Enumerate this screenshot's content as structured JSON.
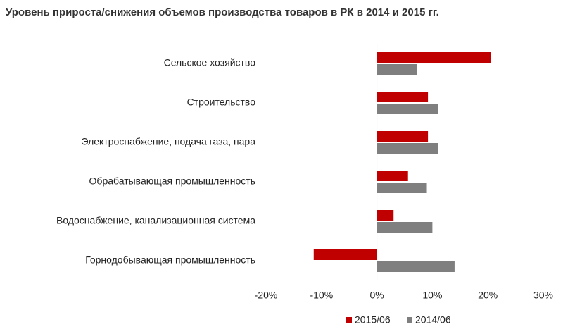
{
  "chart_data": {
    "type": "hbar",
    "title": "Уровень прироста/снижения  объемов производства товаров в РК в 2014 и 2015 гг.",
    "categories": [
      "Сельское хозяйство",
      "Строительство",
      "Электроснабжение, подача газа, пара",
      "Обрабатывающая промышленность",
      "Водоснабжение, канализационная система",
      "Горнодобывающая промышленность"
    ],
    "series": [
      {
        "name": "2015/06",
        "color": "#c00000",
        "values": [
          20.5,
          9.2,
          9.2,
          5.6,
          3.0,
          -11.4
        ]
      },
      {
        "name": "2014/06",
        "color": "#7f7f7f",
        "values": [
          7.2,
          11.0,
          11.0,
          9.0,
          10.0,
          14.0
        ]
      }
    ],
    "xlim": [
      -20,
      30
    ],
    "xticks": [
      {
        "value": -20,
        "label": "-20%"
      },
      {
        "value": -10,
        "label": "-10%"
      },
      {
        "value": 0,
        "label": "0%"
      },
      {
        "value": 10,
        "label": "10%"
      },
      {
        "value": 20,
        "label": "20%"
      },
      {
        "value": 30,
        "label": "30%"
      }
    ],
    "grid": false,
    "legend": "bottom"
  }
}
